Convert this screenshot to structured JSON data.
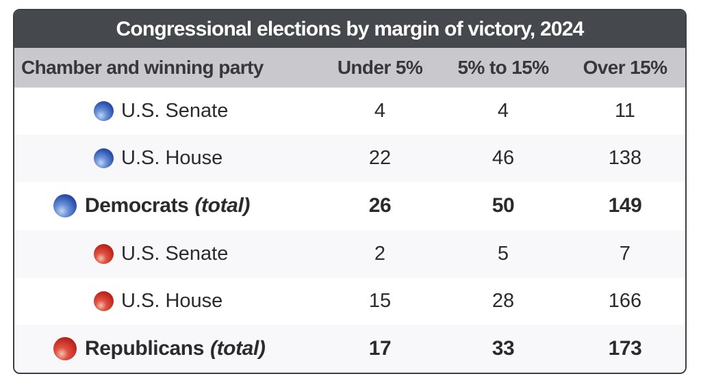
{
  "chart_data": {
    "type": "table",
    "title": "Congressional elections by margin of victory, 2024",
    "columns": [
      "Chamber and winning party",
      "Under 5%",
      "5% to 15%",
      "Over 15%"
    ],
    "rows": [
      {
        "label": "U.S. Senate",
        "suffix": "",
        "party": "Democratic",
        "values": [
          4,
          4,
          11
        ]
      },
      {
        "label": "U.S. House",
        "suffix": "",
        "party": "Democratic",
        "values": [
          22,
          46,
          138
        ]
      },
      {
        "label": "Democrats",
        "suffix": "(total)",
        "party": "Democratic",
        "values": [
          26,
          50,
          149
        ]
      },
      {
        "label": "U.S. Senate",
        "suffix": "",
        "party": "Republican",
        "values": [
          2,
          5,
          7
        ]
      },
      {
        "label": "U.S. House",
        "suffix": "",
        "party": "Republican",
        "values": [
          15,
          28,
          166
        ]
      },
      {
        "label": "Republicans",
        "suffix": "(total)",
        "party": "Republican",
        "values": [
          17,
          33,
          173
        ]
      }
    ],
    "legend_position": "none",
    "grid": false
  },
  "colors": {
    "title_bar_bg": "#45484c",
    "title_text": "#ffffff",
    "header_bg": "#c9c9cd",
    "header_text": "#38383b",
    "row_bg": "#ffffff",
    "row_alt_bg": "#f8f7fa",
    "body_text": "#2b2b2d",
    "democrat_dot": "#2a50ab",
    "republican_dot": "#c0261c",
    "card_border": "#3b3e42"
  }
}
